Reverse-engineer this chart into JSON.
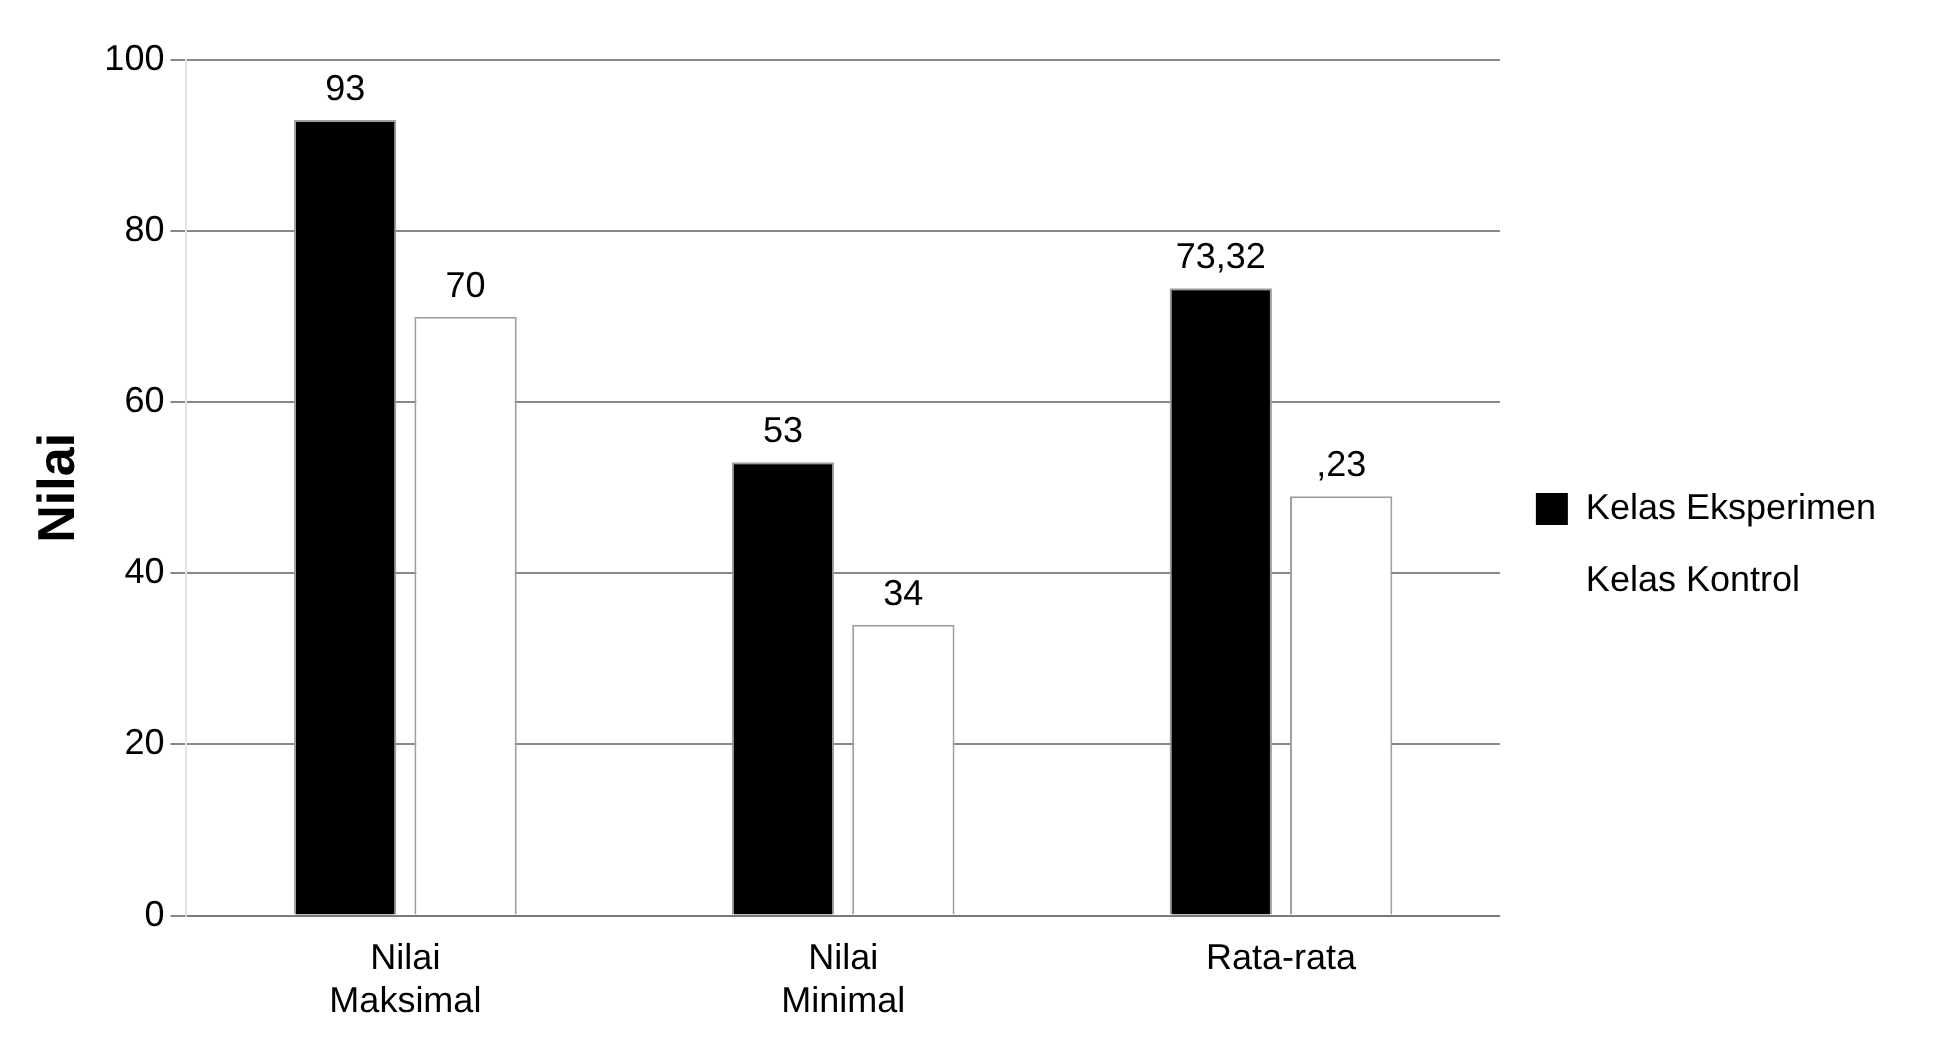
{
  "chart_data": {
    "type": "bar",
    "ylabel": "Nilai",
    "categories": [
      "Nilai Maksimal",
      "Nilai Minimal",
      "Rata-rata"
    ],
    "series": [
      {
        "name": "Kelas Eksperimen",
        "color": "#000000",
        "values": [
          93,
          53,
          73.32
        ],
        "value_labels": [
          "93",
          "53",
          "73,32"
        ]
      },
      {
        "name": "Kelas Kontrol",
        "color": "#ffffff",
        "values": [
          70,
          34,
          49
        ],
        "value_labels": [
          "70",
          "34",
          null
        ]
      }
    ],
    "annotations": [
      ",23"
    ],
    "ylim": [
      0,
      100
    ],
    "yticks": [
      0,
      20,
      40,
      60,
      80,
      100
    ],
    "grid": "y",
    "legend": "right"
  }
}
